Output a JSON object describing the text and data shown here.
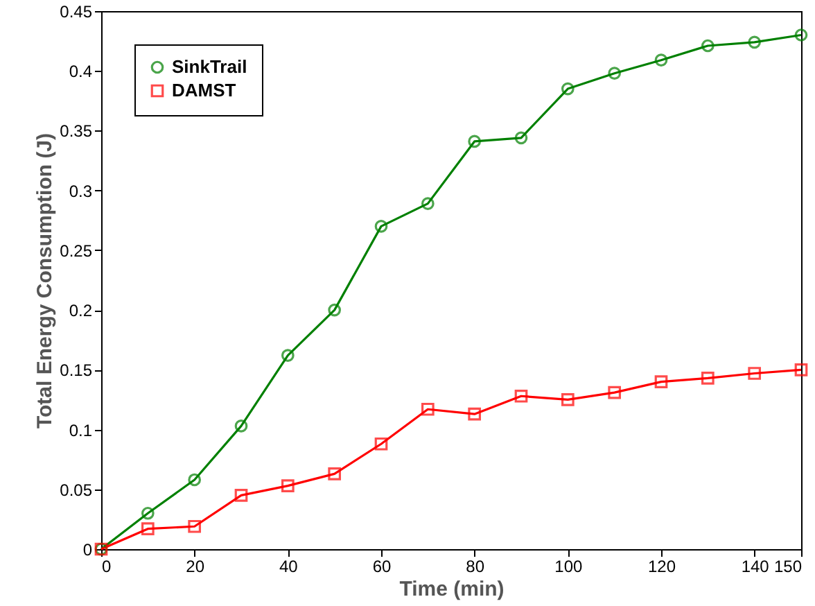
{
  "chart_data": {
    "type": "line",
    "xlabel": "Time (min)",
    "ylabel": "Total Energy Consumption (J)",
    "x": [
      0,
      10,
      20,
      30,
      40,
      50,
      60,
      70,
      80,
      90,
      100,
      110,
      120,
      130,
      140,
      150
    ],
    "series": [
      {
        "name": "SinkTrail",
        "color": "#008000",
        "marker": "circle",
        "values": [
          0,
          0.03,
          0.058,
          0.103,
          0.162,
          0.2,
          0.27,
          0.289,
          0.341,
          0.344,
          0.385,
          0.398,
          0.409,
          0.421,
          0.424,
          0.43
        ]
      },
      {
        "name": "DAMST",
        "color": "#ff0000",
        "marker": "square",
        "values": [
          0,
          0.017,
          0.019,
          0.045,
          0.053,
          0.063,
          0.088,
          0.117,
          0.113,
          0.128,
          0.125,
          0.131,
          0.14,
          0.143,
          0.147,
          0.15
        ]
      }
    ],
    "xlim": [
      0,
      150
    ],
    "xticks": [
      0,
      20,
      40,
      60,
      80,
      100,
      120,
      140,
      150
    ],
    "ylim": [
      0,
      0.45
    ],
    "yticks": [
      0,
      0.05,
      0.1,
      0.15,
      0.2,
      0.25,
      0.3,
      0.35,
      0.4,
      0.45
    ],
    "legend": "top left",
    "grid": false,
    "line_style": "solid"
  }
}
